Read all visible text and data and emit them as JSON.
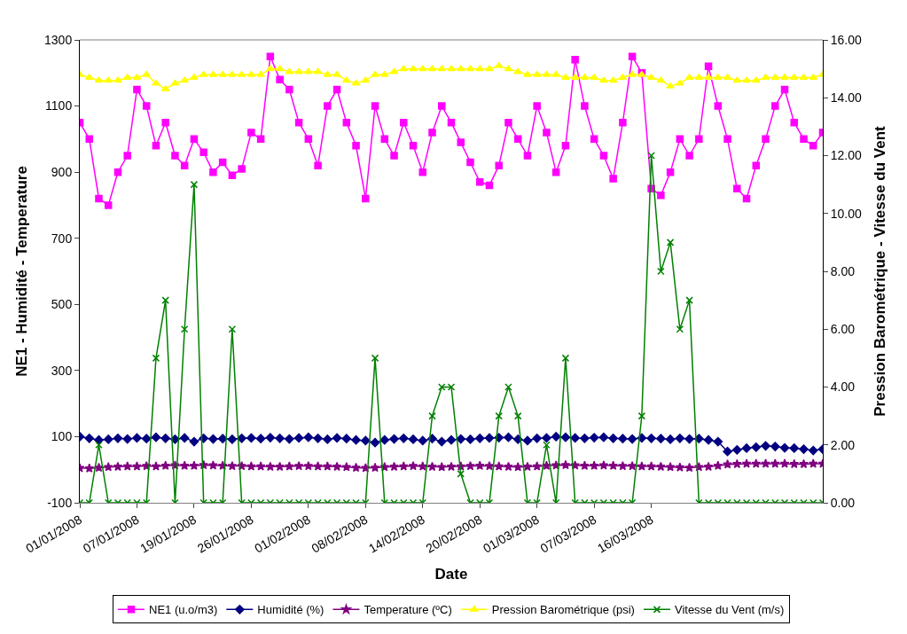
{
  "chart_data": {
    "type": "line",
    "xlabel": "Date",
    "ylabel": "NE1 - Humidité - Temperature",
    "y2label": "Pression Barométrique - Vitesse du Vent",
    "categories": [
      "01/01/2008",
      null,
      null,
      null,
      null,
      null,
      "07/01/2008",
      null,
      null,
      null,
      null,
      null,
      "19/01/2008",
      null,
      null,
      null,
      null,
      null,
      "26/01/2008",
      null,
      null,
      null,
      null,
      null,
      "01/02/2008",
      null,
      null,
      null,
      null,
      null,
      "08/02/2008",
      null,
      null,
      null,
      null,
      null,
      "14/02/2008",
      null,
      null,
      null,
      null,
      null,
      "20/02/2008",
      null,
      null,
      null,
      null,
      null,
      "01/03/2008",
      null,
      null,
      null,
      null,
      null,
      "07/03/2008",
      null,
      null,
      null,
      null,
      null,
      "16/03/2008",
      null,
      null,
      null,
      null,
      null,
      null,
      null,
      null,
      null,
      null,
      null,
      null,
      null,
      null,
      null,
      null,
      null,
      null
    ],
    "ylim": [
      -100,
      1300
    ],
    "yticks": [
      -100,
      100,
      300,
      500,
      700,
      900,
      1100,
      1300
    ],
    "y2lim": [
      0,
      16
    ],
    "y2ticks": [
      {
        "value": 0,
        "label": "0.00"
      },
      {
        "value": 2,
        "label": "2.00"
      },
      {
        "value": 4,
        "label": "4.00"
      },
      {
        "value": 6,
        "label": "6.00"
      },
      {
        "value": 8,
        "label": "8.00"
      },
      {
        "value": 10,
        "label": "10.00"
      },
      {
        "value": 12,
        "label": "12.00"
      },
      {
        "value": 14,
        "label": "14.00"
      },
      {
        "value": 16,
        "label": "16.00"
      }
    ],
    "legend": "bottom",
    "series": [
      {
        "name": "NE1 (u.o/m3)",
        "color": "#ff00ff",
        "marker": "square",
        "values": [
          1050,
          1000,
          820,
          800,
          900,
          950,
          1150,
          1100,
          980,
          1050,
          950,
          920,
          1000,
          960,
          900,
          930,
          890,
          910,
          1020,
          1000,
          1250,
          1180,
          1150,
          1050,
          1000,
          920,
          1100,
          1150,
          1050,
          980,
          820,
          1100,
          1000,
          950,
          1050,
          980,
          900,
          1020,
          1100,
          1050,
          990,
          930,
          870,
          860,
          920,
          1050,
          1000,
          950,
          1100,
          1020,
          900,
          980,
          1240,
          1100,
          1000,
          950,
          880,
          1050,
          1250,
          1200,
          850,
          830,
          900,
          1000,
          950,
          1000,
          1220,
          1100,
          1000,
          850,
          820,
          920,
          1000,
          1100,
          1150,
          1050,
          1000,
          980,
          1020
        ]
      },
      {
        "name": "Humidité (%)",
        "color": "#000080",
        "marker": "diamond",
        "values": [
          100,
          95,
          90,
          92,
          95,
          93,
          96,
          94,
          98,
          95,
          92,
          96,
          85,
          95,
          93,
          94,
          92,
          95,
          96,
          94,
          97,
          95,
          93,
          96,
          98,
          95,
          92,
          96,
          94,
          90,
          88,
          82,
          90,
          93,
          95,
          92,
          88,
          94,
          85,
          90,
          93,
          92,
          95,
          96,
          97,
          98,
          92,
          88,
          95,
          96,
          100,
          98,
          96,
          95,
          97,
          98,
          95,
          94,
          93,
          96,
          95,
          94,
          92,
          95,
          93,
          94,
          90,
          85,
          55,
          60,
          65,
          68,
          72,
          70,
          66,
          65,
          62,
          58,
          62
        ]
      },
      {
        "name": "Temperature (ºC)",
        "color": "#800080",
        "marker": "star",
        "values": [
          5,
          4,
          6,
          8,
          9,
          10,
          10,
          11,
          10,
          12,
          13,
          12,
          12,
          14,
          13,
          12,
          11,
          11,
          10,
          10,
          9,
          9,
          10,
          11,
          11,
          10,
          10,
          9,
          8,
          6,
          5,
          6,
          8,
          9,
          10,
          11,
          10,
          9,
          8,
          9,
          10,
          11,
          12,
          11,
          10,
          9,
          8,
          9,
          10,
          12,
          13,
          14,
          13,
          12,
          12,
          13,
          12,
          11,
          11,
          10,
          10,
          9,
          8,
          7,
          6,
          8,
          9,
          12,
          16,
          17,
          18,
          18,
          18,
          18,
          18,
          17,
          17,
          18,
          18
        ]
      },
      {
        "name": "Pression Barométrique (psi)",
        "color": "#ffff00",
        "marker": "triangle",
        "axis": "y2",
        "values": [
          14.8,
          14.7,
          14.6,
          14.6,
          14.6,
          14.7,
          14.7,
          14.8,
          14.5,
          14.3,
          14.5,
          14.6,
          14.7,
          14.8,
          14.8,
          14.8,
          14.8,
          14.8,
          14.8,
          14.8,
          15.0,
          15.0,
          14.9,
          14.9,
          14.9,
          14.9,
          14.8,
          14.8,
          14.6,
          14.5,
          14.6,
          14.8,
          14.8,
          14.9,
          15.0,
          15.0,
          15.0,
          15.0,
          15.0,
          15.0,
          15.0,
          15.0,
          15.0,
          15.0,
          15.1,
          15.0,
          14.9,
          14.8,
          14.8,
          14.8,
          14.8,
          14.7,
          14.7,
          14.7,
          14.7,
          14.6,
          14.6,
          14.7,
          14.8,
          14.8,
          14.7,
          14.6,
          14.4,
          14.5,
          14.7,
          14.7,
          14.7,
          14.7,
          14.7,
          14.6,
          14.6,
          14.6,
          14.7,
          14.7,
          14.7,
          14.7,
          14.7,
          14.7,
          14.8
        ]
      },
      {
        "name": "Vitesse du Vent (m/s)",
        "color": "#008000",
        "marker": "cross",
        "axis": "y2",
        "values": [
          0,
          0,
          2,
          0,
          0,
          0,
          0,
          0,
          5,
          7,
          0,
          6,
          11,
          0,
          0,
          0,
          6,
          0,
          0,
          0,
          0,
          0,
          0,
          0,
          0,
          0,
          0,
          0,
          0,
          0,
          0,
          5,
          0,
          0,
          0,
          0,
          0,
          3,
          4,
          4,
          1,
          0,
          0,
          0,
          3,
          4,
          3,
          0,
          0,
          2,
          0,
          5,
          0,
          0,
          0,
          0,
          0,
          0,
          0,
          3,
          12,
          8,
          9,
          6,
          7,
          0,
          0,
          0,
          0,
          0,
          0,
          0,
          0,
          0,
          0,
          0,
          0,
          0,
          0
        ]
      }
    ]
  }
}
